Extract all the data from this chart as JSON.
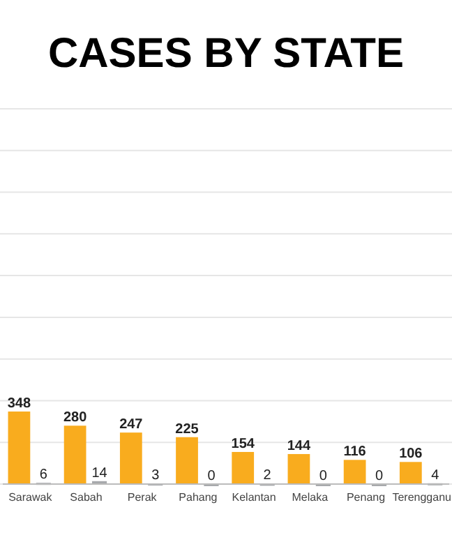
{
  "chart_data": {
    "type": "bar",
    "title": "CASES BY STATE",
    "categories": [
      "Sarawak",
      "Sabah",
      "Perak",
      "Pahang",
      "Kelantan",
      "Melaka",
      "Penang",
      "Terengganu"
    ],
    "series": [
      {
        "color": "#f9ac1e",
        "values": [
          348,
          280,
          247,
          225,
          154,
          144,
          116,
          106
        ]
      },
      {
        "color": "#a7a9ac",
        "values": [
          6,
          14,
          3,
          0,
          2,
          0,
          0,
          4
        ]
      }
    ],
    "ylim": [
      0,
      1800
    ],
    "yticks": [
      {
        "value": 0,
        "label": null
      },
      {
        "value": 200,
        "label": null
      },
      {
        "value": 400,
        "label": null
      },
      {
        "value": 600,
        "label": null
      },
      {
        "value": 800,
        "label": null
      },
      {
        "value": 1000,
        "label": null
      },
      {
        "value": 1200,
        "label": null
      },
      {
        "value": 1400,
        "label": null
      },
      {
        "value": 1600,
        "label": null
      },
      {
        "value": 1800,
        "label": null
      }
    ],
    "grid": "y",
    "data_labels": true,
    "tick_labels": "x"
  }
}
